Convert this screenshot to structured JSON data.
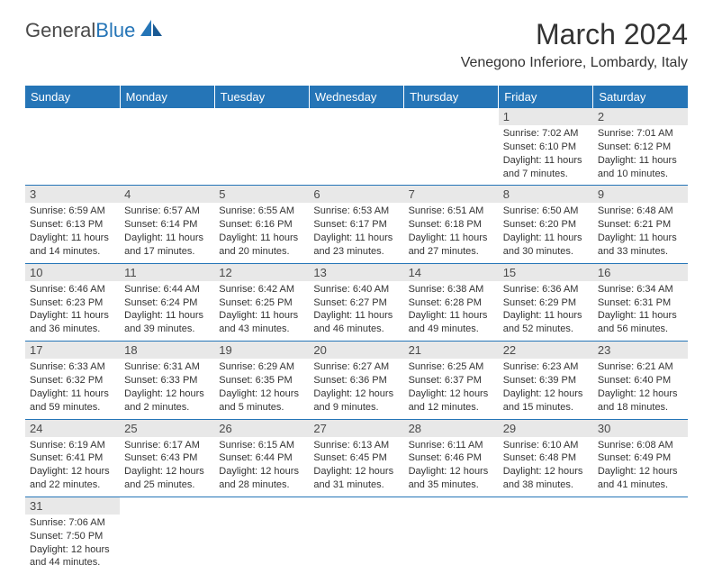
{
  "logo": {
    "text1": "General",
    "text2": "Blue"
  },
  "title": "March 2024",
  "location": "Venegono Inferiore, Lombardy, Italy",
  "colors": {
    "header_bg": "#2575b7",
    "header_text": "#ffffff",
    "daynum_bg": "#e8e8e8",
    "border": "#2575b7",
    "text": "#333333"
  },
  "weekdays": [
    "Sunday",
    "Monday",
    "Tuesday",
    "Wednesday",
    "Thursday",
    "Friday",
    "Saturday"
  ],
  "layout": {
    "first_weekday_index": 5,
    "days_in_month": 31
  },
  "days": {
    "1": {
      "sunrise": "7:02 AM",
      "sunset": "6:10 PM",
      "daylight": "11 hours and 7 minutes."
    },
    "2": {
      "sunrise": "7:01 AM",
      "sunset": "6:12 PM",
      "daylight": "11 hours and 10 minutes."
    },
    "3": {
      "sunrise": "6:59 AM",
      "sunset": "6:13 PM",
      "daylight": "11 hours and 14 minutes."
    },
    "4": {
      "sunrise": "6:57 AM",
      "sunset": "6:14 PM",
      "daylight": "11 hours and 17 minutes."
    },
    "5": {
      "sunrise": "6:55 AM",
      "sunset": "6:16 PM",
      "daylight": "11 hours and 20 minutes."
    },
    "6": {
      "sunrise": "6:53 AM",
      "sunset": "6:17 PM",
      "daylight": "11 hours and 23 minutes."
    },
    "7": {
      "sunrise": "6:51 AM",
      "sunset": "6:18 PM",
      "daylight": "11 hours and 27 minutes."
    },
    "8": {
      "sunrise": "6:50 AM",
      "sunset": "6:20 PM",
      "daylight": "11 hours and 30 minutes."
    },
    "9": {
      "sunrise": "6:48 AM",
      "sunset": "6:21 PM",
      "daylight": "11 hours and 33 minutes."
    },
    "10": {
      "sunrise": "6:46 AM",
      "sunset": "6:23 PM",
      "daylight": "11 hours and 36 minutes."
    },
    "11": {
      "sunrise": "6:44 AM",
      "sunset": "6:24 PM",
      "daylight": "11 hours and 39 minutes."
    },
    "12": {
      "sunrise": "6:42 AM",
      "sunset": "6:25 PM",
      "daylight": "11 hours and 43 minutes."
    },
    "13": {
      "sunrise": "6:40 AM",
      "sunset": "6:27 PM",
      "daylight": "11 hours and 46 minutes."
    },
    "14": {
      "sunrise": "6:38 AM",
      "sunset": "6:28 PM",
      "daylight": "11 hours and 49 minutes."
    },
    "15": {
      "sunrise": "6:36 AM",
      "sunset": "6:29 PM",
      "daylight": "11 hours and 52 minutes."
    },
    "16": {
      "sunrise": "6:34 AM",
      "sunset": "6:31 PM",
      "daylight": "11 hours and 56 minutes."
    },
    "17": {
      "sunrise": "6:33 AM",
      "sunset": "6:32 PM",
      "daylight": "11 hours and 59 minutes."
    },
    "18": {
      "sunrise": "6:31 AM",
      "sunset": "6:33 PM",
      "daylight": "12 hours and 2 minutes."
    },
    "19": {
      "sunrise": "6:29 AM",
      "sunset": "6:35 PM",
      "daylight": "12 hours and 5 minutes."
    },
    "20": {
      "sunrise": "6:27 AM",
      "sunset": "6:36 PM",
      "daylight": "12 hours and 9 minutes."
    },
    "21": {
      "sunrise": "6:25 AM",
      "sunset": "6:37 PM",
      "daylight": "12 hours and 12 minutes."
    },
    "22": {
      "sunrise": "6:23 AM",
      "sunset": "6:39 PM",
      "daylight": "12 hours and 15 minutes."
    },
    "23": {
      "sunrise": "6:21 AM",
      "sunset": "6:40 PM",
      "daylight": "12 hours and 18 minutes."
    },
    "24": {
      "sunrise": "6:19 AM",
      "sunset": "6:41 PM",
      "daylight": "12 hours and 22 minutes."
    },
    "25": {
      "sunrise": "6:17 AM",
      "sunset": "6:43 PM",
      "daylight": "12 hours and 25 minutes."
    },
    "26": {
      "sunrise": "6:15 AM",
      "sunset": "6:44 PM",
      "daylight": "12 hours and 28 minutes."
    },
    "27": {
      "sunrise": "6:13 AM",
      "sunset": "6:45 PM",
      "daylight": "12 hours and 31 minutes."
    },
    "28": {
      "sunrise": "6:11 AM",
      "sunset": "6:46 PM",
      "daylight": "12 hours and 35 minutes."
    },
    "29": {
      "sunrise": "6:10 AM",
      "sunset": "6:48 PM",
      "daylight": "12 hours and 38 minutes."
    },
    "30": {
      "sunrise": "6:08 AM",
      "sunset": "6:49 PM",
      "daylight": "12 hours and 41 minutes."
    },
    "31": {
      "sunrise": "7:06 AM",
      "sunset": "7:50 PM",
      "daylight": "12 hours and 44 minutes."
    }
  }
}
